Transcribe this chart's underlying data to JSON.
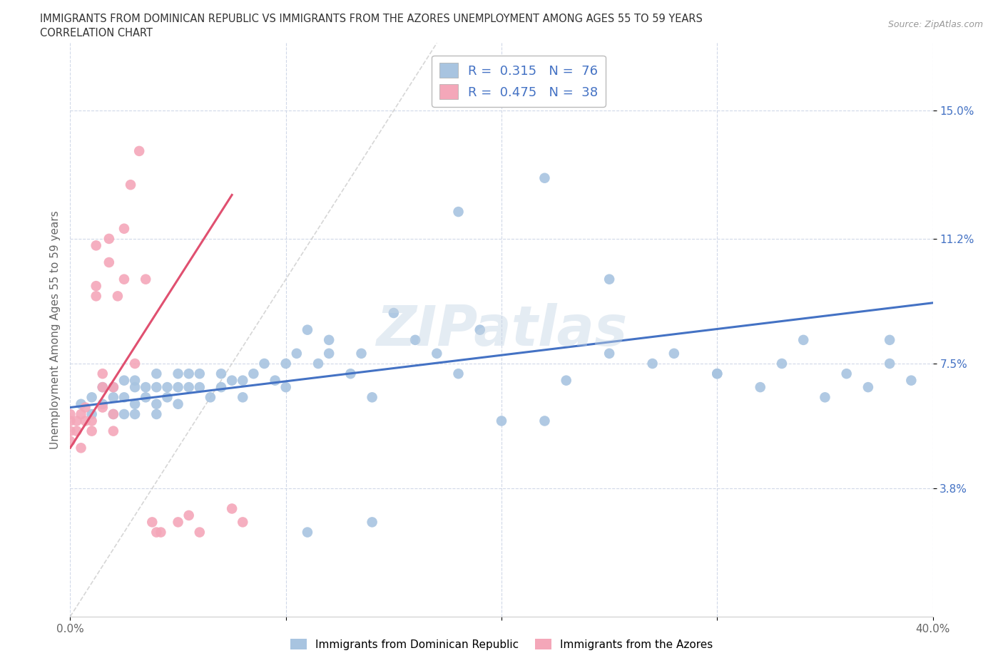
{
  "title_line1": "IMMIGRANTS FROM DOMINICAN REPUBLIC VS IMMIGRANTS FROM THE AZORES UNEMPLOYMENT AMONG AGES 55 TO 59 YEARS",
  "title_line2": "CORRELATION CHART",
  "source": "Source: ZipAtlas.com",
  "ylabel": "Unemployment Among Ages 55 to 59 years",
  "xlim": [
    0.0,
    0.4
  ],
  "ylim": [
    0.0,
    0.17
  ],
  "ytick_positions": [
    0.038,
    0.075,
    0.112,
    0.15
  ],
  "ytick_labels": [
    "3.8%",
    "7.5%",
    "11.2%",
    "15.0%"
  ],
  "color_blue": "#a8c4e0",
  "color_pink": "#f4a7b9",
  "trendline_blue": "#4472c4",
  "trendline_pink": "#e05070",
  "watermark": "ZIPatlas",
  "blue_scatter_x": [
    0.005,
    0.01,
    0.01,
    0.015,
    0.015,
    0.02,
    0.02,
    0.02,
    0.025,
    0.025,
    0.025,
    0.03,
    0.03,
    0.03,
    0.03,
    0.035,
    0.035,
    0.04,
    0.04,
    0.04,
    0.04,
    0.045,
    0.045,
    0.05,
    0.05,
    0.05,
    0.055,
    0.055,
    0.06,
    0.06,
    0.065,
    0.07,
    0.07,
    0.075,
    0.08,
    0.08,
    0.085,
    0.09,
    0.095,
    0.1,
    0.1,
    0.105,
    0.11,
    0.115,
    0.12,
    0.12,
    0.13,
    0.135,
    0.14,
    0.15,
    0.16,
    0.17,
    0.18,
    0.19,
    0.2,
    0.22,
    0.23,
    0.25,
    0.27,
    0.28,
    0.3,
    0.32,
    0.33,
    0.34,
    0.35,
    0.36,
    0.37,
    0.38,
    0.38,
    0.39,
    0.18,
    0.22,
    0.25,
    0.3,
    0.14,
    0.11
  ],
  "blue_scatter_y": [
    0.063,
    0.06,
    0.065,
    0.063,
    0.068,
    0.06,
    0.065,
    0.068,
    0.06,
    0.065,
    0.07,
    0.06,
    0.063,
    0.068,
    0.07,
    0.065,
    0.068,
    0.06,
    0.063,
    0.068,
    0.072,
    0.065,
    0.068,
    0.063,
    0.068,
    0.072,
    0.068,
    0.072,
    0.068,
    0.072,
    0.065,
    0.068,
    0.072,
    0.07,
    0.065,
    0.07,
    0.072,
    0.075,
    0.07,
    0.068,
    0.075,
    0.078,
    0.085,
    0.075,
    0.078,
    0.082,
    0.072,
    0.078,
    0.065,
    0.09,
    0.082,
    0.078,
    0.072,
    0.085,
    0.058,
    0.058,
    0.07,
    0.1,
    0.075,
    0.078,
    0.072,
    0.068,
    0.075,
    0.082,
    0.065,
    0.072,
    0.068,
    0.075,
    0.082,
    0.07,
    0.12,
    0.13,
    0.078,
    0.072,
    0.028,
    0.025
  ],
  "pink_scatter_x": [
    0.0,
    0.0,
    0.0,
    0.0,
    0.003,
    0.003,
    0.005,
    0.005,
    0.007,
    0.007,
    0.01,
    0.01,
    0.012,
    0.012,
    0.012,
    0.015,
    0.015,
    0.015,
    0.018,
    0.018,
    0.02,
    0.02,
    0.02,
    0.022,
    0.025,
    0.025,
    0.028,
    0.03,
    0.032,
    0.035,
    0.038,
    0.04,
    0.042,
    0.05,
    0.055,
    0.06,
    0.075,
    0.08
  ],
  "pink_scatter_y": [
    0.06,
    0.058,
    0.055,
    0.052,
    0.058,
    0.055,
    0.06,
    0.05,
    0.062,
    0.058,
    0.058,
    0.055,
    0.095,
    0.098,
    0.11,
    0.072,
    0.068,
    0.062,
    0.105,
    0.112,
    0.068,
    0.06,
    0.055,
    0.095,
    0.1,
    0.115,
    0.128,
    0.075,
    0.138,
    0.1,
    0.028,
    0.025,
    0.025,
    0.028,
    0.03,
    0.025,
    0.032,
    0.028
  ]
}
